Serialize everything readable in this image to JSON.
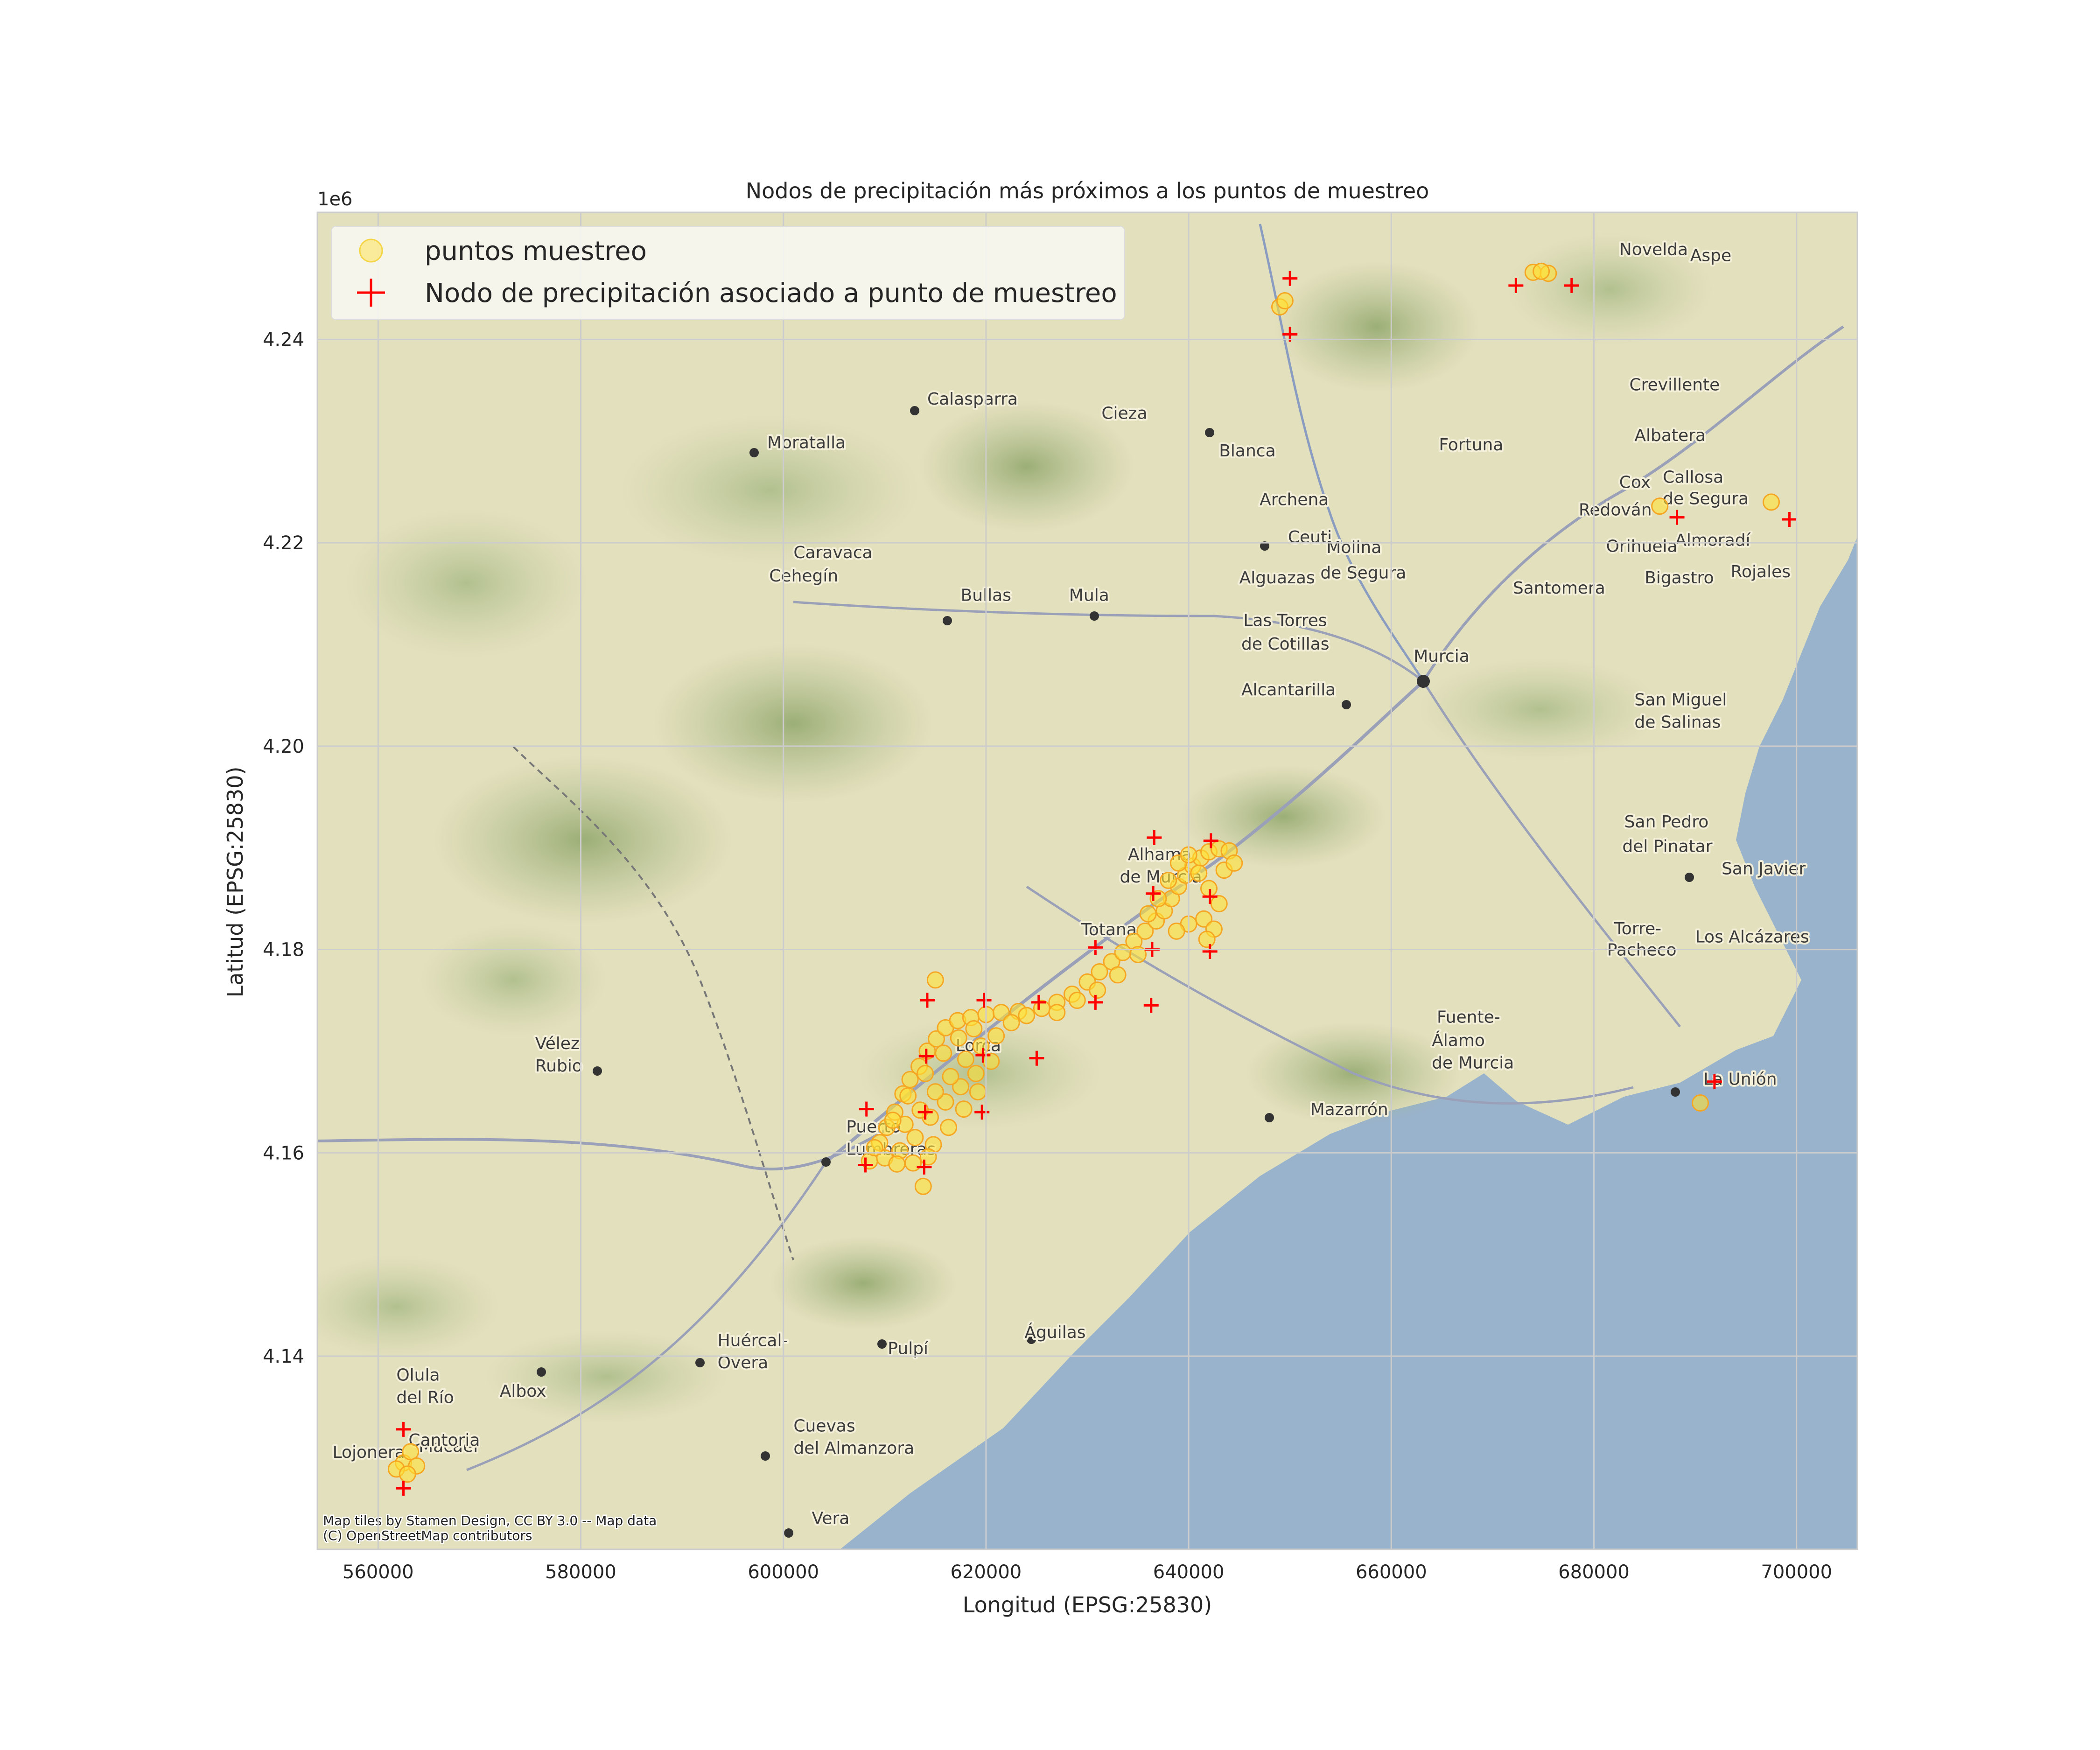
{
  "chart_data": {
    "type": "scatter",
    "title": "Nodos de precipitación más próximos a los puntos de muestreo",
    "xlabel": "Longitud (EPSG:25830)",
    "ylabel": "Latitud (EPSG:25830)",
    "y_offset_label": "1e6",
    "xlim": [
      554000,
      706000
    ],
    "ylim": [
      4121000,
      4252500
    ],
    "x_ticks": [
      560000,
      580000,
      600000,
      620000,
      640000,
      660000,
      680000,
      700000
    ],
    "x_tick_labels": [
      "560000",
      "580000",
      "600000",
      "620000",
      "640000",
      "660000",
      "680000",
      "700000"
    ],
    "y_ticks": [
      4140000,
      4160000,
      4180000,
      4200000,
      4220000,
      4240000
    ],
    "y_tick_labels": [
      "4.14",
      "4.16",
      "4.18",
      "4.20",
      "4.22",
      "4.24"
    ],
    "grid": true,
    "legend_position": "top-left",
    "colors": {
      "points_fill": "#ffe135",
      "points_edge": "#f5a623",
      "nodes": "#ff0000",
      "sea": "#99b3cc",
      "land": "#e3e0bd"
    },
    "series": [
      {
        "name": "puntos muestreo",
        "marker": "circle",
        "points": [
          [
            562500,
            4129500
          ],
          [
            563200,
            4130600
          ],
          [
            561800,
            4128900
          ],
          [
            563800,
            4129200
          ],
          [
            562900,
            4128400
          ],
          [
            649000,
            4243200
          ],
          [
            649500,
            4243800
          ],
          [
            674000,
            4246600
          ],
          [
            675500,
            4246500
          ],
          [
            674800,
            4246700
          ],
          [
            686500,
            4223600
          ],
          [
            697500,
            4224000
          ],
          [
            615000,
            4177000
          ],
          [
            613800,
            4156700
          ],
          [
            690500,
            4164900
          ],
          [
            608500,
            4159200
          ],
          [
            609500,
            4161000
          ],
          [
            610200,
            4162500
          ],
          [
            611000,
            4164000
          ],
          [
            611800,
            4165800
          ],
          [
            612500,
            4167200
          ],
          [
            613400,
            4168500
          ],
          [
            614200,
            4170000
          ],
          [
            615100,
            4171200
          ],
          [
            616000,
            4172300
          ],
          [
            617200,
            4173000
          ],
          [
            618500,
            4173300
          ],
          [
            620000,
            4173600
          ],
          [
            621500,
            4173800
          ],
          [
            623200,
            4173900
          ],
          [
            610000,
            4159500
          ],
          [
            611500,
            4160200
          ],
          [
            613000,
            4161500
          ],
          [
            614500,
            4163500
          ],
          [
            616000,
            4165000
          ],
          [
            617500,
            4166500
          ],
          [
            619000,
            4167800
          ],
          [
            620500,
            4169000
          ],
          [
            612000,
            4162800
          ],
          [
            613500,
            4164200
          ],
          [
            615000,
            4166000
          ],
          [
            616500,
            4167500
          ],
          [
            618000,
            4169200
          ],
          [
            619500,
            4170500
          ],
          [
            621000,
            4171500
          ],
          [
            609000,
            4160500
          ],
          [
            610800,
            4163200
          ],
          [
            612300,
            4165600
          ],
          [
            614000,
            4167800
          ],
          [
            615800,
            4169800
          ],
          [
            617300,
            4171300
          ],
          [
            618800,
            4172200
          ],
          [
            614800,
            4160800
          ],
          [
            616300,
            4162500
          ],
          [
            617800,
            4164300
          ],
          [
            619200,
            4166000
          ],
          [
            611200,
            4158900
          ],
          [
            612800,
            4159000
          ],
          [
            614300,
            4159600
          ],
          [
            622500,
            4172800
          ],
          [
            624000,
            4173500
          ],
          [
            625500,
            4174200
          ],
          [
            627000,
            4174800
          ],
          [
            628500,
            4175600
          ],
          [
            630000,
            4176800
          ],
          [
            631200,
            4177800
          ],
          [
            632400,
            4178800
          ],
          [
            633500,
            4179700
          ],
          [
            634600,
            4180800
          ],
          [
            635700,
            4181800
          ],
          [
            636800,
            4182800
          ],
          [
            637600,
            4183800
          ],
          [
            638300,
            4185000
          ],
          [
            639000,
            4186200
          ],
          [
            639700,
            4187300
          ],
          [
            640400,
            4188200
          ],
          [
            641200,
            4189000
          ],
          [
            642000,
            4189600
          ],
          [
            643000,
            4189900
          ],
          [
            644000,
            4189700
          ],
          [
            637000,
            4185000
          ],
          [
            638000,
            4186800
          ],
          [
            639000,
            4188500
          ],
          [
            640000,
            4189300
          ],
          [
            641000,
            4187500
          ],
          [
            642000,
            4186000
          ],
          [
            643000,
            4184500
          ],
          [
            641500,
            4183000
          ],
          [
            640000,
            4182500
          ],
          [
            638800,
            4181800
          ],
          [
            635000,
            4179500
          ],
          [
            633000,
            4177500
          ],
          [
            631000,
            4176000
          ],
          [
            629000,
            4175000
          ],
          [
            627000,
            4173800
          ],
          [
            642500,
            4182000
          ],
          [
            641800,
            4181000
          ],
          [
            643500,
            4187800
          ],
          [
            644500,
            4188500
          ],
          [
            636000,
            4183500
          ]
        ]
      },
      {
        "name": "Nodo de precipitación asociado a punto de muestreo",
        "marker": "plus",
        "points": [
          [
            562500,
            4132800
          ],
          [
            562500,
            4127000
          ],
          [
            650000,
            4246000
          ],
          [
            650000,
            4240500
          ],
          [
            672300,
            4245300
          ],
          [
            677800,
            4245300
          ],
          [
            688200,
            4222500
          ],
          [
            699300,
            4222300
          ],
          [
            691900,
            4167000
          ],
          [
            608100,
            4158800
          ],
          [
            608200,
            4164300
          ],
          [
            613900,
            4158600
          ],
          [
            614000,
            4164000
          ],
          [
            614100,
            4169500
          ],
          [
            614200,
            4175000
          ],
          [
            619600,
            4164000
          ],
          [
            619700,
            4169600
          ],
          [
            619800,
            4175000
          ],
          [
            625000,
            4169300
          ],
          [
            625200,
            4174800
          ],
          [
            630800,
            4174800
          ],
          [
            630800,
            4180200
          ],
          [
            636300,
            4174500
          ],
          [
            636400,
            4180000
          ],
          [
            636500,
            4185500
          ],
          [
            636600,
            4191000
          ],
          [
            642100,
            4185200
          ],
          [
            642200,
            4190700
          ],
          [
            642100,
            4179800
          ]
        ]
      }
    ],
    "map_places": [
      {
        "name": "Novelda",
        "x": 682500,
        "y": 4248300
      },
      {
        "name": "Aspe",
        "x": 689500,
        "y": 4247700
      },
      {
        "name": "Calasparra",
        "x": 614200,
        "y": 4233600
      },
      {
        "name": "Moratalla",
        "x": 598400,
        "y": 4229300
      },
      {
        "name": "Cieza",
        "x": 631400,
        "y": 4232200
      },
      {
        "name": "Blanca",
        "x": 643000,
        "y": 4228500
      },
      {
        "name": "Fortuna",
        "x": 664700,
        "y": 4229100
      },
      {
        "name": "Crevillente",
        "x": 683500,
        "y": 4235000
      },
      {
        "name": "Albatera",
        "x": 684000,
        "y": 4230000
      },
      {
        "name": "Callosa",
        "x": 686800,
        "y": 4225900
      },
      {
        "name": "de Segura",
        "x": 686800,
        "y": 4223800
      },
      {
        "name": "Cox",
        "x": 682500,
        "y": 4225400
      },
      {
        "name": "Redován",
        "x": 678500,
        "y": 4222700
      },
      {
        "name": "Almoradí",
        "x": 688000,
        "y": 4219700
      },
      {
        "name": "Orihuela",
        "x": 681200,
        "y": 4219100
      },
      {
        "name": "Rojales",
        "x": 693500,
        "y": 4216600
      },
      {
        "name": "Bigastro",
        "x": 685000,
        "y": 4216000
      },
      {
        "name": "Santomera",
        "x": 672000,
        "y": 4215000
      },
      {
        "name": "Archena",
        "x": 647000,
        "y": 4223700
      },
      {
        "name": "Ceuti",
        "x": 649800,
        "y": 4220000
      },
      {
        "name": "Molina",
        "x": 653600,
        "y": 4219000
      },
      {
        "name": "de Segura",
        "x": 653000,
        "y": 4216500
      },
      {
        "name": "Alguazas",
        "x": 645000,
        "y": 4216000
      },
      {
        "name": "Las Torres",
        "x": 645400,
        "y": 4211800
      },
      {
        "name": "de Cotillas",
        "x": 645200,
        "y": 4209500
      },
      {
        "name": "Murcia",
        "x": 662200,
        "y": 4208300
      },
      {
        "name": "Alcantarilla",
        "x": 645200,
        "y": 4205000
      },
      {
        "name": "San Miguel",
        "x": 684000,
        "y": 4204000
      },
      {
        "name": "de Salinas",
        "x": 684000,
        "y": 4201800
      },
      {
        "name": "Caravaca",
        "x": 601000,
        "y": 4218500
      },
      {
        "name": "Cehegín",
        "x": 598600,
        "y": 4216200
      },
      {
        "name": "Bullas",
        "x": 617500,
        "y": 4214300
      },
      {
        "name": "Mula",
        "x": 628200,
        "y": 4214300
      },
      {
        "name": "San Pedro",
        "x": 683000,
        "y": 4192000
      },
      {
        "name": "del Pinatar",
        "x": 682800,
        "y": 4189600
      },
      {
        "name": "San Javier",
        "x": 692600,
        "y": 4187400
      },
      {
        "name": "Alhama",
        "x": 634000,
        "y": 4188800
      },
      {
        "name": "de Murcia",
        "x": 633200,
        "y": 4186600
      },
      {
        "name": "Torre-",
        "x": 682000,
        "y": 4181500
      },
      {
        "name": "Pacheco",
        "x": 681300,
        "y": 4179400
      },
      {
        "name": "Los Alcázares",
        "x": 690000,
        "y": 4180700
      },
      {
        "name": "Totana",
        "x": 629400,
        "y": 4181400
      },
      {
        "name": "Vélez",
        "x": 575500,
        "y": 4170200
      },
      {
        "name": "Rubio",
        "x": 575500,
        "y": 4168000
      },
      {
        "name": "Lorca",
        "x": 617000,
        "y": 4170000
      },
      {
        "name": "Fuente-",
        "x": 664500,
        "y": 4172800
      },
      {
        "name": "Álamo",
        "x": 664000,
        "y": 4170500
      },
      {
        "name": "de Murcia",
        "x": 664000,
        "y": 4168300
      },
      {
        "name": "La Unión",
        "x": 690800,
        "y": 4166700
      },
      {
        "name": "Mazarrón",
        "x": 652000,
        "y": 4163700
      },
      {
        "name": "Puerto",
        "x": 606200,
        "y": 4162000
      },
      {
        "name": "Lumbreras",
        "x": 606200,
        "y": 4159800
      },
      {
        "name": "Huércal-",
        "x": 593500,
        "y": 4141000
      },
      {
        "name": "Overa",
        "x": 593500,
        "y": 4138800
      },
      {
        "name": "Pulpí",
        "x": 610300,
        "y": 4140200
      },
      {
        "name": "Águilas",
        "x": 623800,
        "y": 4141800
      },
      {
        "name": "Olula",
        "x": 561800,
        "y": 4137600
      },
      {
        "name": "del Río",
        "x": 561800,
        "y": 4135400
      },
      {
        "name": "Albox",
        "x": 572000,
        "y": 4136000
      },
      {
        "name": "Macael",
        "x": 564000,
        "y": 4130600
      },
      {
        "name": "Cantoria",
        "x": 563000,
        "y": 4131200
      },
      {
        "name": "Lojonera",
        "x": 555500,
        "y": 4130000
      },
      {
        "name": "Cuevas",
        "x": 601000,
        "y": 4132600
      },
      {
        "name": "del Almanzora",
        "x": 601000,
        "y": 4130400
      },
      {
        "name": "Vera",
        "x": 602800,
        "y": 4123500
      }
    ],
    "attribution": [
      "Map tiles by Stamen Design, CC BY 3.0 -- Map data",
      "(C) OpenStreetMap contributors"
    ]
  }
}
